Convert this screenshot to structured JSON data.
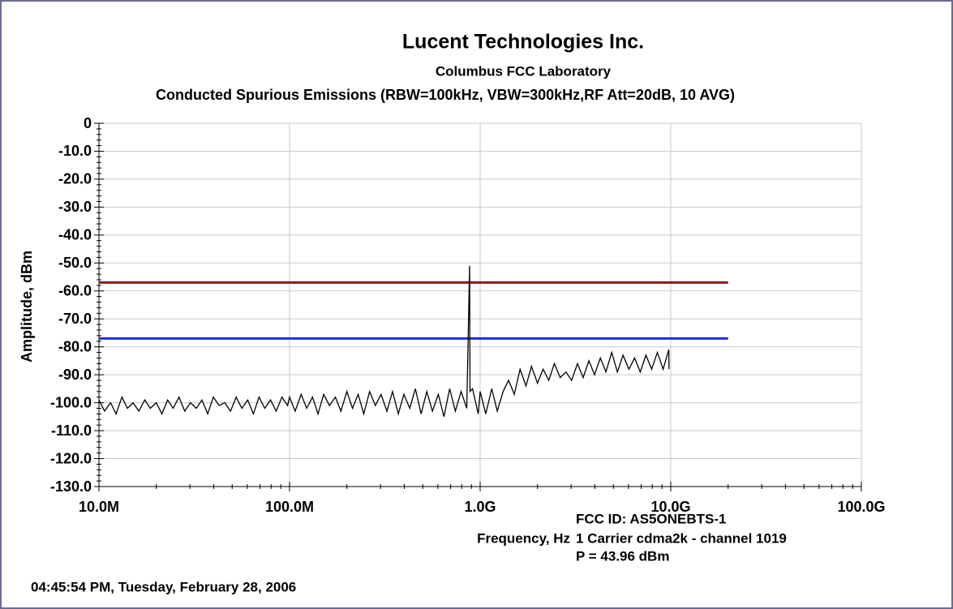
{
  "chart_data": {
    "type": "line",
    "title": "Lucent Technologies Inc.",
    "subtitle": "Columbus FCC Laboratory",
    "subtitle2": "Conducted Spurious Emissions (RBW=100kHz, VBW=300kHz,RF Att=20dB, 10 AVG)",
    "ylabel": "Amplitude, dBm",
    "xlabel": "Frequency, Hz",
    "annotations": [
      "FCC ID: AS5ONEBTS-1",
      "1 Carrier cdma2k - channel 1019",
      "P = 43.96 dBm"
    ],
    "timestamp": "04:45:54 PM, Tuesday, February 28, 2006",
    "xscale": "log",
    "grid": true,
    "xlim": [
      10000000.0,
      100000000000.0
    ],
    "ylim": [
      -130,
      0
    ],
    "xticks": [
      {
        "value": 10000000.0,
        "label": "10.0M"
      },
      {
        "value": 100000000.0,
        "label": "100.0M"
      },
      {
        "value": 1000000000.0,
        "label": "1.0G"
      },
      {
        "value": 10000000000.0,
        "label": "10.0G"
      },
      {
        "value": 100000000000.0,
        "label": "100.0G"
      }
    ],
    "yticks": [
      0,
      {
        "value": -10,
        "label": "-10.0"
      },
      {
        "value": -20,
        "label": "-20.0"
      },
      {
        "value": -30,
        "label": "-30.0"
      },
      {
        "value": -40,
        "label": "-40.0"
      },
      {
        "value": -50,
        "label": "-50.0"
      },
      {
        "value": -60,
        "label": "-60.0"
      },
      {
        "value": -70,
        "label": "-70.0"
      },
      {
        "value": -80,
        "label": "-80.0"
      },
      {
        "value": -90,
        "label": "-90.0"
      },
      {
        "value": -100,
        "label": "-100.0"
      },
      {
        "value": -110,
        "label": "-110.0"
      },
      {
        "value": -120,
        "label": "-120.0"
      },
      {
        "value": -130,
        "label": "-130.0"
      }
    ],
    "series": [
      {
        "color": "#8b1a1a",
        "x": [
          10000000.0,
          20000000000.0
        ],
        "values": [
          -57,
          -57
        ]
      },
      {
        "color": "#1f2fd6",
        "x": [
          10000000.0,
          20000000000.0
        ],
        "values": [
          -77,
          -77
        ]
      },
      {
        "color": "#000000",
        "x": [
          10000000.0,
          10700000.0,
          11500000.0,
          12300000.0,
          13200000.0,
          14100000.0,
          15100000.0,
          16200000.0,
          17400000.0,
          18600000.0,
          20000000.0,
          21400000.0,
          22900000.0,
          24500000.0,
          26300000.0,
          28200000.0,
          30200000.0,
          32400000.0,
          34700000.0,
          37200000.0,
          39800000.0,
          42700000.0,
          45700000.0,
          49000000.0,
          52500000.0,
          56200000.0,
          60300000.0,
          64600000.0,
          69200000.0,
          74100000.0,
          79400000.0,
          85100000.0,
          91200000.0,
          97700000.0,
          100000000.0,
          107000000.0,
          115000000.0,
          123000000.0,
          132000000.0,
          141000000.0,
          151000000.0,
          162000000.0,
          174000000.0,
          186000000.0,
          200000000.0,
          214000000.0,
          229000000.0,
          245000000.0,
          263000000.0,
          282000000.0,
          302000000.0,
          324000000.0,
          347000000.0,
          372000000.0,
          398000000.0,
          427000000.0,
          457000000.0,
          490000000.0,
          525000000.0,
          562000000.0,
          603000000.0,
          646000000.0,
          692000000.0,
          741000000.0,
          794000000.0,
          851000000.0,
          880000000.0,
          885000000.0,
          912000000.0,
          977000000.0,
          1000000000.0,
          1070000000.0,
          1150000000.0,
          1230000000.0,
          1320000000.0,
          1410000000.0,
          1510000000.0,
          1620000000.0,
          1740000000.0,
          1860000000.0,
          2000000000.0,
          2140000000.0,
          2290000000.0,
          2450000000.0,
          2630000000.0,
          2820000000.0,
          3020000000.0,
          3240000000.0,
          3470000000.0,
          3720000000.0,
          3980000000.0,
          4270000000.0,
          4570000000.0,
          4900000000.0,
          5250000000.0,
          5620000000.0,
          6030000000.0,
          6460000000.0,
          6920000000.0,
          7410000000.0,
          7940000000.0,
          8510000000.0,
          9120000000.0,
          9770000000.0,
          9800000000.0
        ],
        "values": [
          -99,
          -103,
          -100,
          -104,
          -98,
          -102,
          -100,
          -103,
          -99,
          -102,
          -100,
          -104,
          -99,
          -102,
          -98,
          -103,
          -100,
          -102,
          -99,
          -104,
          -98,
          -101,
          -100,
          -103,
          -98,
          -102,
          -99,
          -104,
          -98,
          -102,
          -99,
          -103,
          -98,
          -101,
          -98,
          -103,
          -97,
          -102,
          -98,
          -104,
          -97,
          -101,
          -98,
          -103,
          -96,
          -102,
          -97,
          -104,
          -96,
          -101,
          -97,
          -103,
          -96,
          -104,
          -97,
          -102,
          -95,
          -104,
          -96,
          -103,
          -97,
          -105,
          -95,
          -103,
          -96,
          -102,
          -51,
          -96,
          -95,
          -104,
          -96,
          -104,
          -95,
          -103,
          -96,
          -92,
          -97,
          -88,
          -94,
          -87,
          -93,
          -88,
          -92,
          -86,
          -91,
          -89,
          -92,
          -86,
          -91,
          -85,
          -90,
          -84,
          -89,
          -82,
          -89,
          -83,
          -88,
          -84,
          -89,
          -83,
          -88,
          -82,
          -88,
          -81,
          -88
        ]
      }
    ]
  }
}
